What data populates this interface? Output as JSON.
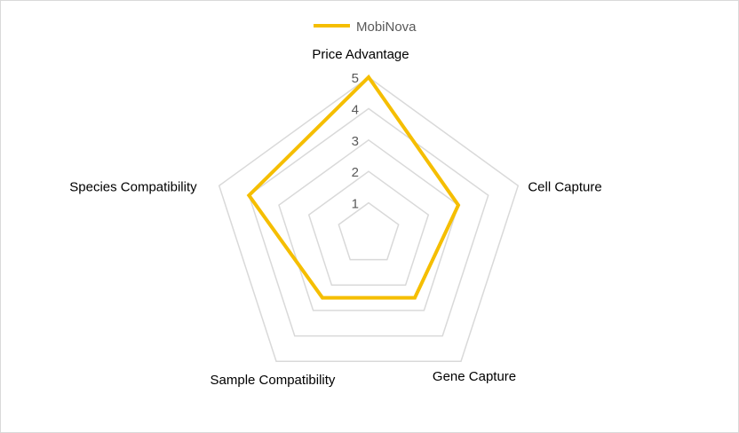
{
  "chart_data": {
    "type": "radar",
    "axes": [
      "Price Advantage",
      "Cell Capture",
      "Gene Capture",
      "Sample Compatibility",
      "Species Compatibility"
    ],
    "ticks": [
      "1",
      "2",
      "3",
      "4",
      "5"
    ],
    "rlim": [
      0,
      5
    ],
    "grid": true,
    "legend_position": "top",
    "series": [
      {
        "name": "MobiNova",
        "values": [
          5,
          3,
          2.5,
          2.5,
          4
        ],
        "color": "#F5BE00"
      }
    ],
    "grid_color": "#D9D9D9"
  }
}
